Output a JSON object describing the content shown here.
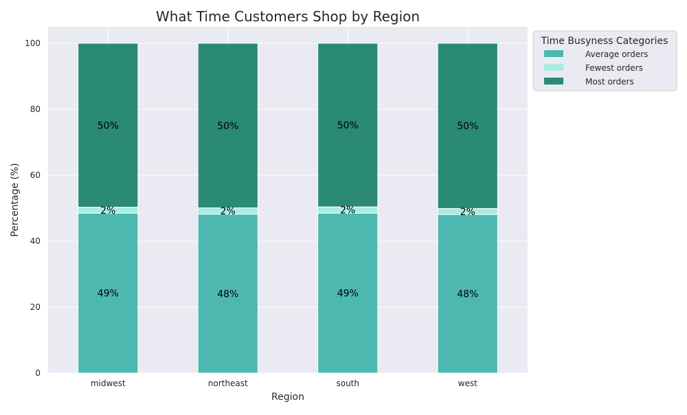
{
  "chart_data": {
    "type": "bar",
    "stacked": true,
    "title": "What Time Customers Shop by Region",
    "xlabel": "Region",
    "ylabel": "Percentage (%)",
    "ylim": [
      0,
      105
    ],
    "yticks": [
      0,
      20,
      40,
      60,
      80,
      100
    ],
    "grid": true,
    "categories": [
      "midwest",
      "northeast",
      "south",
      "west"
    ],
    "series": [
      {
        "name": "Average orders",
        "color": "#4db8b0",
        "values": [
          48.5,
          48.2,
          48.5,
          48.1
        ]
      },
      {
        "name": "Fewest orders",
        "color": "#a8ece3",
        "values": [
          1.8,
          1.9,
          1.9,
          1.8
        ]
      },
      {
        "name": "Most orders",
        "color": "#2a8a74",
        "values": [
          49.7,
          49.9,
          49.6,
          50.1
        ]
      }
    ],
    "data_labels": [
      [
        "49%",
        "48%",
        "49%",
        "48%"
      ],
      [
        "2%",
        "2%",
        "2%",
        "2%"
      ],
      [
        "50%",
        "50%",
        "50%",
        "50%"
      ]
    ],
    "legend": {
      "title": "Time Busyness Categories",
      "position": "outside-top-right"
    },
    "background": "#eaeaf2"
  }
}
